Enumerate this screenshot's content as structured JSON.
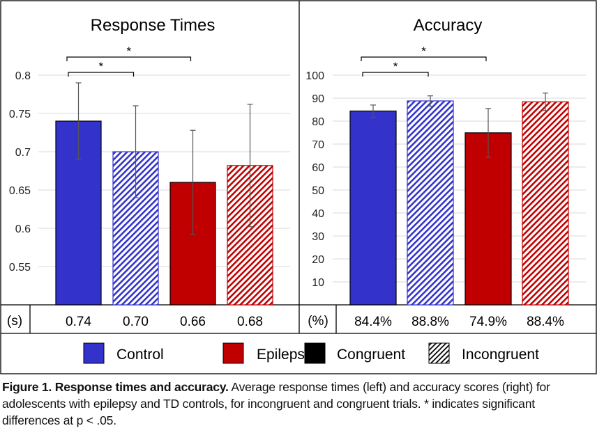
{
  "chart_data": [
    {
      "type": "bar",
      "title": "Response Times",
      "categories": [
        "Control Congruent",
        "Control Incongruent",
        "Epilepsy Congruent",
        "Epilepsy Incongruent"
      ],
      "values": [
        0.74,
        0.7,
        0.66,
        0.682
      ],
      "error_upper": [
        0.79,
        0.76,
        0.728,
        0.762
      ],
      "error_lower": [
        0.69,
        0.64,
        0.592,
        0.602
      ],
      "ylim": [
        0.5,
        0.8
      ],
      "yticks": [
        "0.55",
        "0.6",
        "0.65",
        "0.7",
        "0.75",
        "0.8"
      ],
      "ytick_values": [
        0.55,
        0.6,
        0.65,
        0.7,
        0.75,
        0.8
      ],
      "grid": true,
      "table_unit": "(s)",
      "table_values": [
        "0.74",
        "0.70",
        "0.66",
        "0.68"
      ],
      "significance": [
        {
          "from": 0,
          "to": 1,
          "label": "*"
        },
        {
          "from": 0,
          "to": 2,
          "label": "*"
        }
      ]
    },
    {
      "type": "bar",
      "title": "Accuracy",
      "categories": [
        "Control Congruent",
        "Control Incongruent",
        "Epilepsy Congruent",
        "Epilepsy Incongruent"
      ],
      "values": [
        84.4,
        88.8,
        74.9,
        88.4
      ],
      "error_upper": [
        87,
        91,
        85.5,
        92.2
      ],
      "error_lower": [
        81.6,
        86.5,
        64.2,
        84.6
      ],
      "ylim": [
        0,
        100
      ],
      "yticks": [
        "10",
        "20",
        "30",
        "40",
        "50",
        "60",
        "70",
        "80",
        "90",
        "100"
      ],
      "ytick_values": [
        10,
        20,
        30,
        40,
        50,
        60,
        70,
        80,
        90,
        100
      ],
      "grid": true,
      "table_unit": "(%)",
      "table_values": [
        "84.4%",
        "88.8%",
        "74.9%",
        "88.4%"
      ],
      "significance": [
        {
          "from": 0,
          "to": 1,
          "label": "*"
        },
        {
          "from": 0,
          "to": 2,
          "label": "*"
        }
      ]
    }
  ],
  "bar_styles": [
    {
      "group": "Control",
      "condition": "Congruent",
      "color": "#3333CC",
      "pattern": "solid"
    },
    {
      "group": "Control",
      "condition": "Incongruent",
      "color": "#3333CC",
      "pattern": "hatch"
    },
    {
      "group": "Epilepsy",
      "condition": "Congruent",
      "color": "#C00000",
      "pattern": "solid"
    },
    {
      "group": "Epilepsy",
      "condition": "Incongruent",
      "color": "#C00000",
      "pattern": "hatch"
    }
  ],
  "legend": {
    "placement": "bottom",
    "items": [
      {
        "label": "Control",
        "color": "#3333CC",
        "pattern": "solid"
      },
      {
        "label": "Epilepsy",
        "color": "#C00000",
        "pattern": "solid"
      },
      {
        "label": "Congruent",
        "color": "#000000",
        "pattern": "solid"
      },
      {
        "label": "Incongruent",
        "color": "#000000",
        "pattern": "hatch"
      }
    ]
  },
  "caption": {
    "bold": "Figure 1. Response times and accuracy.",
    "text": " Average response times (left) and accuracy scores (right) for adolescents with epilepsy and TD controls, for incongruent  and congruent  trials. * indicates significant differences at p < .05."
  }
}
